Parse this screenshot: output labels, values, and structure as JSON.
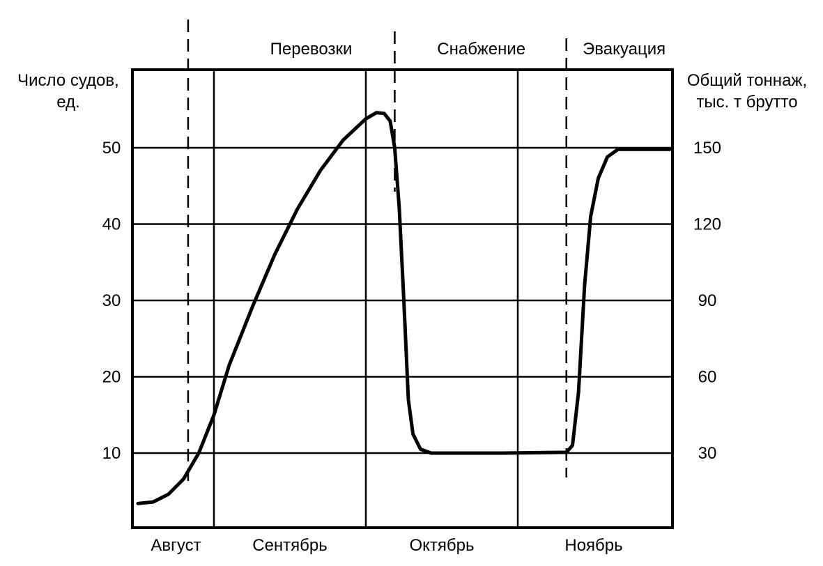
{
  "chart_data": {
    "type": "line",
    "left_axis_label_line1": "Число судов,",
    "left_axis_label_line2": "ед.",
    "right_axis_label_line1": "Общий тоннаж,",
    "right_axis_label_line2": "тыс. т брутто",
    "left_ticks": [
      "10",
      "20",
      "30",
      "40",
      "50"
    ],
    "left_tick_values": [
      10,
      20,
      30,
      40,
      50
    ],
    "right_ticks": [
      "30",
      "60",
      "90",
      "120",
      "150"
    ],
    "ylim": [
      0,
      60
    ],
    "xlim": [
      0,
      3.5
    ],
    "months": [
      {
        "label": "Август",
        "center": 0.25
      },
      {
        "label": "Сентябрь",
        "center": 1.0
      },
      {
        "label": "Октябрь",
        "center": 2.0
      },
      {
        "label": "Ноябрь",
        "center": 3.0
      }
    ],
    "month_boundaries": [
      0.5,
      1.5,
      2.5
    ],
    "phases": [
      {
        "label": "Перевозки",
        "center": 1.14
      },
      {
        "label": "Снабжение",
        "center": 2.26
      },
      {
        "label": "Эвакуация",
        "center": 3.2
      }
    ],
    "phase_boundaries": [
      0.33,
      1.69,
      2.82
    ],
    "series": [
      {
        "values": [
          [
            0.0,
            3.4
          ],
          [
            0.1,
            3.6
          ],
          [
            0.2,
            4.6
          ],
          [
            0.3,
            6.6
          ],
          [
            0.4,
            10.0
          ],
          [
            0.5,
            15.0
          ],
          [
            0.6,
            21.5
          ],
          [
            0.75,
            29.0
          ],
          [
            0.9,
            36.0
          ],
          [
            1.05,
            42.0
          ],
          [
            1.2,
            47.0
          ],
          [
            1.35,
            51.0
          ],
          [
            1.5,
            53.8
          ],
          [
            1.57,
            54.6
          ],
          [
            1.62,
            54.5
          ],
          [
            1.66,
            53.5
          ],
          [
            1.69,
            50.0
          ],
          [
            1.72,
            42.0
          ],
          [
            1.75,
            30.0
          ],
          [
            1.78,
            17.0
          ],
          [
            1.81,
            12.5
          ],
          [
            1.86,
            10.5
          ],
          [
            1.93,
            10.0
          ],
          [
            2.4,
            10.0
          ],
          [
            2.82,
            10.1
          ],
          [
            2.86,
            11.0
          ],
          [
            2.9,
            18.0
          ],
          [
            2.94,
            32.0
          ],
          [
            2.98,
            41.0
          ],
          [
            3.03,
            46.0
          ],
          [
            3.09,
            48.8
          ],
          [
            3.16,
            49.8
          ],
          [
            3.25,
            49.8
          ],
          [
            3.35,
            49.8
          ],
          [
            3.5,
            49.8
          ]
        ]
      }
    ]
  }
}
